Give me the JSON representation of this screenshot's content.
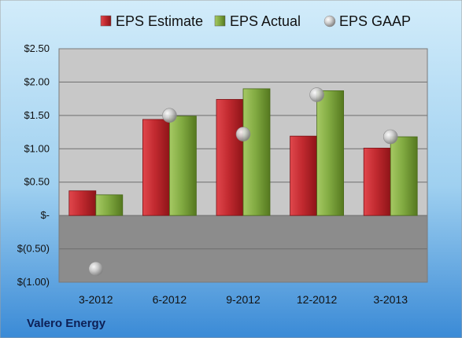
{
  "company": "Valero Energy",
  "colors": {
    "estimate": "#c0262c",
    "actual": "#7aa33a",
    "gaap": "#b8b8b8",
    "background_top": "#bde0f5",
    "background_bottom": "#3f8fd8",
    "plot_positive": "#c7c7c7",
    "plot_negative": "#8a8a8a"
  },
  "chart_data": {
    "type": "bar",
    "categories": [
      "3-2012",
      "6-2012",
      "9-2012",
      "12-2012",
      "3-2013"
    ],
    "series": [
      {
        "name": "EPS Estimate",
        "kind": "bar",
        "values": [
          0.37,
          1.44,
          1.74,
          1.19,
          1.01
        ]
      },
      {
        "name": "EPS Actual",
        "kind": "bar",
        "values": [
          0.31,
          1.49,
          1.9,
          1.87,
          1.18
        ]
      },
      {
        "name": "EPS GAAP",
        "kind": "scatter",
        "values": [
          -0.8,
          1.5,
          1.22,
          1.81,
          1.18
        ]
      }
    ],
    "ylim": [
      -1.0,
      2.5
    ],
    "yticks": [
      2.5,
      2.0,
      1.5,
      1.0,
      0.5,
      0.0,
      -0.5,
      -1.0
    ],
    "ytick_labels": [
      "$2.50",
      "$2.00",
      "$1.50",
      "$1.00",
      "$0.50",
      "$-",
      "$(0.50)",
      "$(1.00)"
    ],
    "grid": true,
    "legend_position": "top"
  }
}
